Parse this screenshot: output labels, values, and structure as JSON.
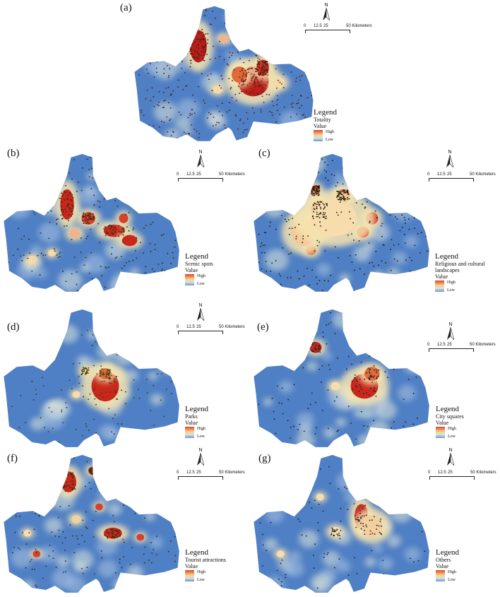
{
  "scale_bar": {
    "ticks": [
      "0",
      "12.5",
      "25",
      "50 Kilometers"
    ]
  },
  "north_label": "N",
  "legend_title": "Legend",
  "value_label": "Value",
  "ramp": {
    "high": "High",
    "low": "Low",
    "colors": [
      "#e2432a",
      "#f6d48a",
      "#d6e2e2",
      "#6f97c8"
    ]
  },
  "base_color": "#4f7fc4",
  "panels": [
    {
      "id": "a",
      "label": "(a)",
      "category": "Totality"
    },
    {
      "id": "b",
      "label": "(b)",
      "category": "Scenic spots"
    },
    {
      "id": "c",
      "label": "(c)",
      "category": "Religious and cultural landscapes"
    },
    {
      "id": "d",
      "label": "(d)",
      "category": "Parks"
    },
    {
      "id": "e",
      "label": "(e)",
      "category": "City squares"
    },
    {
      "id": "f",
      "label": "(f)",
      "category": "Tourist attractions"
    },
    {
      "id": "g",
      "label": "(g)",
      "category": "Others"
    }
  ]
}
